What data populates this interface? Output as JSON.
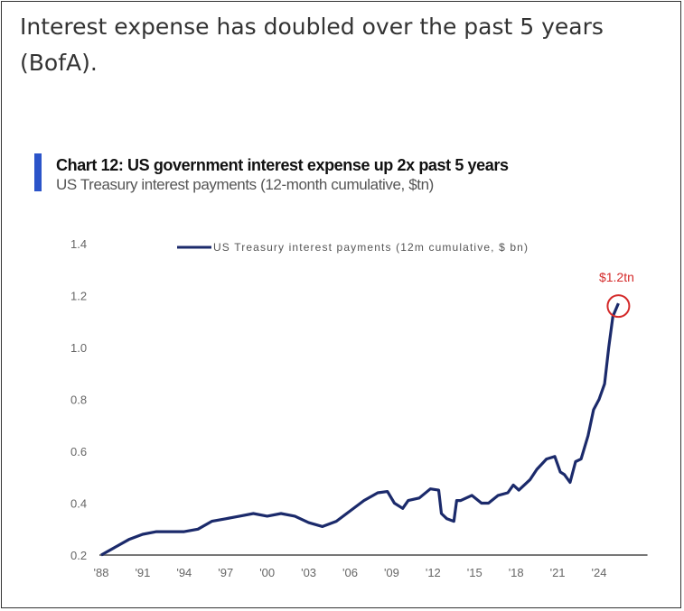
{
  "headline": "Interest expense has doubled over the past 5 years (BofA).",
  "chart_data": {
    "type": "line",
    "title": "Chart 12: US government interest expense up 2x past 5 years",
    "subtitle": "US Treasury interest payments (12-month cumulative, $tn)",
    "xlabel": "",
    "ylabel": "",
    "ylim": [
      0.2,
      1.4
    ],
    "xlim": [
      1988,
      2027.5
    ],
    "y_ticks": [
      "0.2",
      "0.4",
      "0.6",
      "0.8",
      "1.0",
      "1.2",
      "1.4"
    ],
    "x_ticks": [
      "'88",
      "'91",
      "'94",
      "'97",
      "'00",
      "'03",
      "'06",
      "'09",
      "'12",
      "'15",
      "'18",
      "'21",
      "'24"
    ],
    "legend": {
      "label": "US Treasury interest payments (12m cumulative, $ bn)",
      "placement": "top-center"
    },
    "annotation": {
      "text": "$1.2tn",
      "color": "#d42a2a"
    },
    "grid": false,
    "series": [
      {
        "name": "US Treasury interest payments (12m cumulative, $ bn)",
        "color": "#1b2a6b",
        "x": [
          1988,
          1989,
          1990,
          1991,
          1992,
          1993,
          1994,
          1995,
          1996,
          1997,
          1998,
          1999,
          2000,
          2001,
          2002,
          2003,
          2004,
          2005,
          2006,
          2007,
          2008,
          2008.7,
          2009.2,
          2009.8,
          2010.2,
          2011,
          2011.8,
          2012.4,
          2012.6,
          2013,
          2013.5,
          2013.7,
          2014,
          2014.8,
          2015.5,
          2016,
          2016.7,
          2017.4,
          2017.8,
          2018.2,
          2019,
          2019.5,
          2020.2,
          2020.8,
          2021.2,
          2021.5,
          2021.9,
          2022.3,
          2022.7,
          2023.2,
          2023.6,
          2024,
          2024.4,
          2024.7,
          2025,
          2025.4
        ],
        "values": [
          0.2,
          0.23,
          0.26,
          0.28,
          0.29,
          0.29,
          0.29,
          0.3,
          0.33,
          0.34,
          0.35,
          0.36,
          0.35,
          0.36,
          0.35,
          0.325,
          0.31,
          0.33,
          0.37,
          0.41,
          0.44,
          0.445,
          0.4,
          0.38,
          0.41,
          0.42,
          0.455,
          0.45,
          0.36,
          0.34,
          0.33,
          0.41,
          0.41,
          0.43,
          0.4,
          0.4,
          0.43,
          0.44,
          0.47,
          0.45,
          0.49,
          0.53,
          0.57,
          0.58,
          0.52,
          0.51,
          0.48,
          0.56,
          0.57,
          0.66,
          0.76,
          0.8,
          0.86,
          1.0,
          1.12,
          1.17
        ]
      }
    ]
  }
}
